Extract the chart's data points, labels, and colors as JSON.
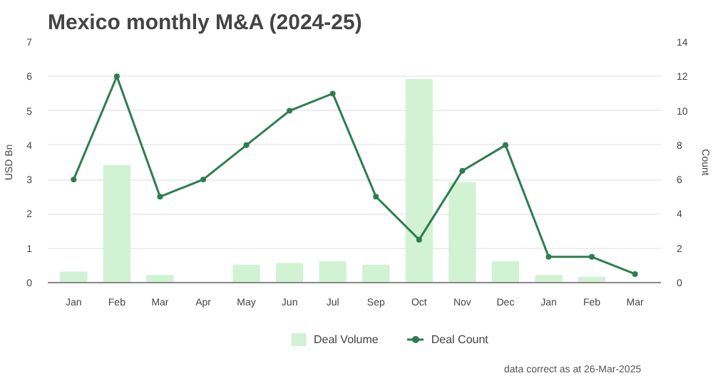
{
  "chart_data": {
    "type": "bar",
    "title": "Mexico monthly M&A (2024-25)",
    "ylabel": "USD Bn",
    "y2label": "Count",
    "categories": [
      "Jan",
      "Feb",
      "Mar",
      "Apr",
      "May",
      "Jun",
      "Jul",
      "Sep",
      "Oct",
      "Nov",
      "Dec",
      "Jan",
      "Feb",
      "Mar"
    ],
    "series": [
      {
        "name": "Deal Volume",
        "color": "#d2f2d4",
        "values": [
          0.3,
          3.4,
          0.2,
          0,
          0.5,
          0.55,
          0.6,
          0.5,
          5.9,
          2.9,
          0.6,
          0.2,
          0.15,
          0
        ]
      },
      {
        "name": "Deal Count",
        "type": "line",
        "axis": "y2",
        "color": "#2e7d4f",
        "marker": "circle",
        "values": [
          6,
          12,
          5,
          6,
          8,
          10,
          11,
          5,
          2.5,
          6.5,
          8,
          1.5,
          1.5,
          0.5
        ]
      }
    ],
    "ylim": [
      0,
      7
    ],
    "yticks": [
      0,
      1,
      2,
      3,
      4,
      5,
      6,
      7
    ],
    "y2lim": [
      0,
      14
    ],
    "y2ticks": [
      0,
      2,
      4,
      6,
      8,
      10,
      12,
      14
    ],
    "grid": "y",
    "legend": "bottom",
    "annotations": [
      "data correct as at 26-Mar-2025"
    ]
  }
}
